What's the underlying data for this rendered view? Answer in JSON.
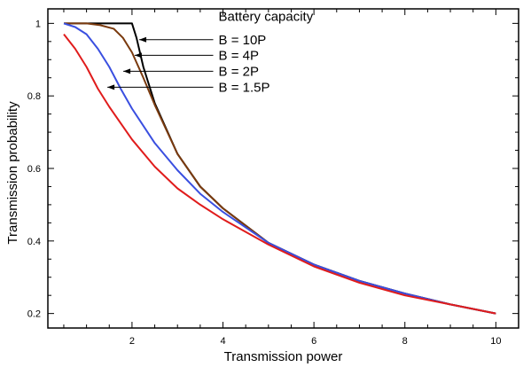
{
  "chart_data": {
    "type": "line",
    "title": "",
    "xlabel": "Transmission power",
    "ylabel": "Transmission probability",
    "xlim": [
      0.15,
      10.5
    ],
    "ylim": [
      0.16,
      1.04
    ],
    "grid": false,
    "x_ticks": [
      2,
      4,
      6,
      8,
      10
    ],
    "x_tick_labels": [
      "2",
      "4",
      "6",
      "8",
      "10"
    ],
    "y_ticks": [
      0.2,
      0.4,
      0.6,
      0.8,
      1
    ],
    "y_tick_labels": [
      "0.2",
      "0.4",
      "0.6",
      "0.8",
      "1"
    ],
    "legend": {
      "title": "Battery capacity",
      "placement": "top-center",
      "entries": [
        "B = 10P",
        "B = 4P",
        "B = 2P",
        "B = 1.5P"
      ]
    },
    "series": [
      {
        "name": "B = 10P",
        "color": "#000000",
        "x": [
          0.5,
          1.0,
          1.5,
          2.0,
          2.1,
          2.25,
          2.5,
          3.0,
          3.5,
          4.0,
          5.0,
          6.0,
          7.0,
          8.0,
          9.0,
          10.0
        ],
        "y": [
          1.0,
          1.0,
          1.0,
          1.0,
          0.96,
          0.88,
          0.78,
          0.64,
          0.55,
          0.49,
          0.395,
          0.335,
          0.29,
          0.255,
          0.225,
          0.2
        ]
      },
      {
        "name": "B = 4P",
        "color": "#7a3a0e",
        "x": [
          0.5,
          1.0,
          1.3,
          1.6,
          1.8,
          2.0,
          2.25,
          2.5,
          3.0,
          3.5,
          4.0,
          5.0,
          6.0,
          7.0,
          8.0,
          9.0,
          10.0
        ],
        "y": [
          1.0,
          1.0,
          0.995,
          0.985,
          0.96,
          0.92,
          0.85,
          0.775,
          0.64,
          0.55,
          0.49,
          0.395,
          0.335,
          0.29,
          0.255,
          0.225,
          0.2
        ]
      },
      {
        "name": "B = 2P",
        "color": "#3a4fe0",
        "x": [
          0.5,
          0.75,
          1.0,
          1.25,
          1.5,
          1.75,
          2.0,
          2.5,
          3.0,
          3.5,
          4.0,
          5.0,
          6.0,
          7.0,
          8.0,
          9.0,
          10.0
        ],
        "y": [
          1.0,
          0.99,
          0.97,
          0.93,
          0.88,
          0.82,
          0.765,
          0.67,
          0.595,
          0.53,
          0.48,
          0.395,
          0.335,
          0.29,
          0.255,
          0.225,
          0.2
        ]
      },
      {
        "name": "B = 1.5P",
        "color": "#e01c1c",
        "x": [
          0.5,
          0.75,
          1.0,
          1.25,
          1.5,
          2.0,
          2.5,
          3.0,
          3.5,
          4.0,
          5.0,
          6.0,
          7.0,
          8.0,
          9.0,
          10.0
        ],
        "y": [
          0.97,
          0.93,
          0.88,
          0.82,
          0.77,
          0.68,
          0.605,
          0.545,
          0.5,
          0.46,
          0.39,
          0.33,
          0.285,
          0.25,
          0.225,
          0.2
        ]
      }
    ],
    "annotations": [
      {
        "target_series": "B = 10P",
        "point": [
          2.1,
          0.96
        ]
      },
      {
        "target_series": "B = 4P",
        "point": [
          2.0,
          0.92
        ]
      },
      {
        "target_series": "B = 2P",
        "point": [
          1.75,
          0.875
        ]
      },
      {
        "target_series": "B = 1.5P",
        "point": [
          1.4,
          0.825
        ]
      }
    ]
  }
}
